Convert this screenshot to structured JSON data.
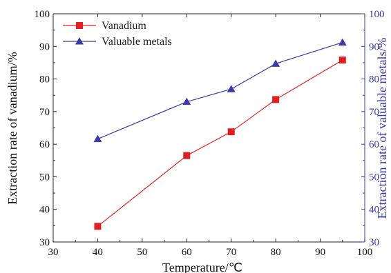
{
  "chart_data": {
    "type": "line",
    "title": "",
    "xlabel": "Temperature/℃",
    "ylabel_left": "Extraction rate of vanadium/%",
    "ylabel_right": "Extraction rate of valuable metals/%",
    "xlim": [
      30,
      100
    ],
    "ylim_left": [
      30,
      100
    ],
    "ylim_right": [
      30,
      100
    ],
    "x_ticks": [
      "30",
      "40",
      "50",
      "60",
      "70",
      "80",
      "90",
      "100"
    ],
    "y_ticks_left": [
      "30",
      "40",
      "50",
      "60",
      "70",
      "80",
      "90",
      "100"
    ],
    "y_ticks_right": [
      "30",
      "40",
      "50",
      "60",
      "70",
      "80",
      "90",
      "100"
    ],
    "grid": false,
    "legend_position": "top-left",
    "series": [
      {
        "name": "Vanadium",
        "axis": "left",
        "marker": "square",
        "color": "#e02020",
        "x": [
          40,
          60,
          70,
          80,
          95
        ],
        "y": [
          34.8,
          56.5,
          63.8,
          73.7,
          85.8
        ]
      },
      {
        "name": "Valuable metals",
        "axis": "right",
        "marker": "triangle",
        "color": "#3a3aa8",
        "x": [
          40,
          60,
          70,
          80,
          95
        ],
        "y": [
          61.6,
          73.0,
          76.9,
          84.7,
          91.2
        ]
      }
    ],
    "colors": {
      "left_axis": "#222222",
      "right_axis": "#3a3aa8"
    }
  }
}
